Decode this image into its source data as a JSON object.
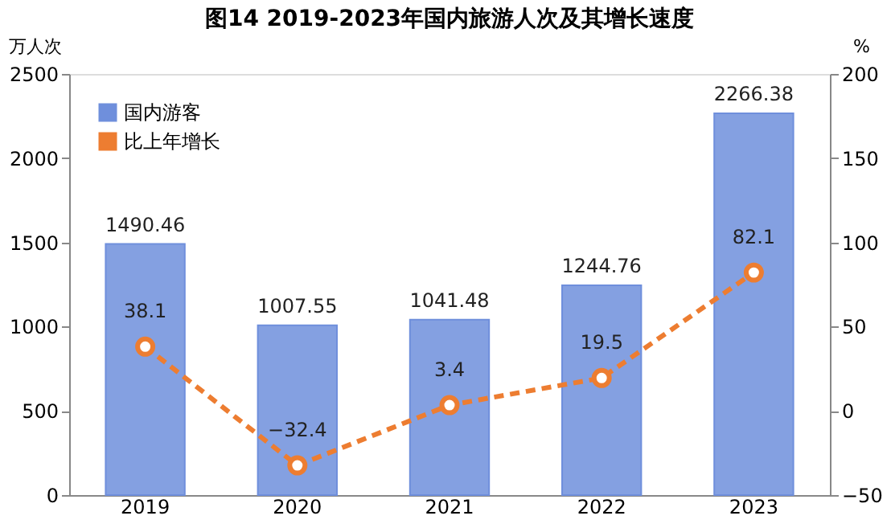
{
  "chart_data": {
    "type": "bar",
    "title": "图14 2019-2023年国内旅游人次及其增长速度",
    "ylabel": "万人次",
    "y2label": "%",
    "categories": [
      "2019",
      "2020",
      "2021",
      "2022",
      "2023"
    ],
    "series": [
      {
        "name": "国内游客",
        "color": "#6f8fdc",
        "values": [
          1490.46,
          1007.55,
          1041.48,
          1244.76,
          2266.38
        ]
      },
      {
        "name": "比上年增长",
        "type": "line",
        "axis": "y2",
        "color": "#ed7d31",
        "line_style": "dashed",
        "marker": "circle",
        "values": [
          38.1,
          -32.4,
          3.4,
          19.5,
          82.1
        ]
      }
    ],
    "ylim": [
      0,
      2500
    ],
    "yticks": [
      0,
      500,
      1000,
      1500,
      2000,
      2500
    ],
    "y2lim": [
      -50,
      200
    ],
    "y2ticks": [
      -50,
      0,
      50,
      100,
      150,
      200
    ],
    "data_labels": true,
    "legend": "top left",
    "grid": false
  }
}
